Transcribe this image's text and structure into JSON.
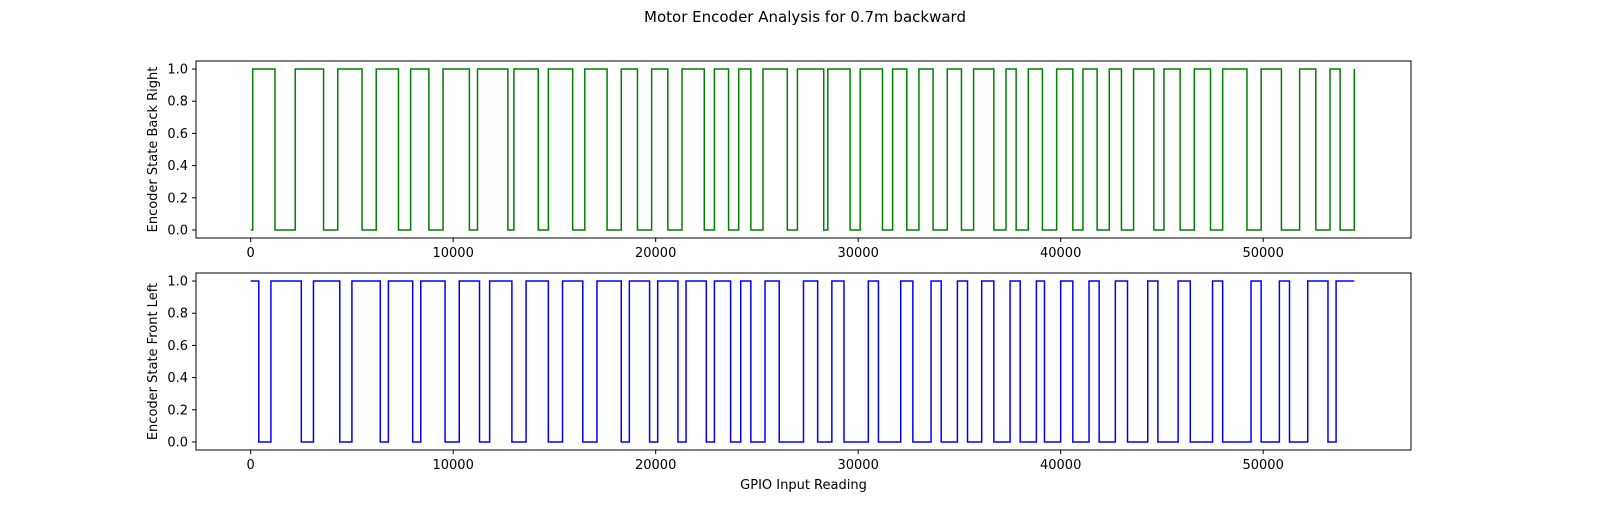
{
  "title": "Motor Encoder Analysis for 0.7m backward",
  "chart_data": [
    {
      "type": "line",
      "step": "post",
      "title": "",
      "xlabel": "",
      "ylabel": "Encoder State Back Right",
      "color": "#008000",
      "xlim": [
        -2700,
        57300
      ],
      "ylim": [
        -0.05,
        1.05
      ],
      "xticks": [
        0,
        10000,
        20000,
        30000,
        40000,
        50000
      ],
      "yticks": [
        0.0,
        0.2,
        0.4,
        0.6,
        0.8,
        1.0
      ],
      "xtick_labels": [
        "0",
        "10000",
        "20000",
        "30000",
        "40000",
        "50000"
      ],
      "ytick_labels": [
        "0.0",
        "0.2",
        "0.4",
        "0.6",
        "0.8",
        "1.0"
      ],
      "initial_state": 0,
      "end_x": 54500,
      "transitions": [
        100,
        1200,
        2200,
        3600,
        4300,
        5500,
        6200,
        7300,
        7900,
        8800,
        9500,
        10800,
        11200,
        12700,
        13000,
        14200,
        14700,
        15900,
        16500,
        17600,
        18300,
        19100,
        19800,
        20600,
        21300,
        22400,
        22900,
        23600,
        24100,
        24700,
        25300,
        26500,
        27000,
        28300,
        28500,
        29600,
        30100,
        31200,
        31700,
        32400,
        33000,
        33700,
        34400,
        35100,
        35700,
        36700,
        37300,
        37800,
        38400,
        39100,
        39800,
        40600,
        41100,
        41800,
        42400,
        43000,
        43600,
        44600,
        45100,
        45900,
        46600,
        47400,
        48000,
        49200,
        49900,
        50900,
        51800,
        52600,
        53300,
        53800,
        54500
      ],
      "grid": false,
      "legend": "none"
    },
    {
      "type": "line",
      "step": "post",
      "title": "",
      "xlabel": "GPIO Input Reading",
      "ylabel": "Encoder State Front Left",
      "color": "#0000ff",
      "xlim": [
        -2700,
        57300
      ],
      "ylim": [
        -0.05,
        1.05
      ],
      "xticks": [
        0,
        10000,
        20000,
        30000,
        40000,
        50000
      ],
      "yticks": [
        0.0,
        0.2,
        0.4,
        0.6,
        0.8,
        1.0
      ],
      "xtick_labels": [
        "0",
        "10000",
        "20000",
        "30000",
        "40000",
        "50000"
      ],
      "ytick_labels": [
        "0.0",
        "0.2",
        "0.4",
        "0.6",
        "0.8",
        "1.0"
      ],
      "initial_state": 1,
      "end_x": 54500,
      "transitions": [
        400,
        1000,
        2500,
        3100,
        4400,
        5000,
        6400,
        6800,
        8000,
        8400,
        9600,
        10300,
        11300,
        11800,
        12900,
        13600,
        14700,
        15400,
        16400,
        17100,
        18300,
        18700,
        19700,
        20100,
        21100,
        21500,
        22500,
        22900,
        23700,
        24200,
        24700,
        25400,
        26100,
        27300,
        28000,
        28700,
        29300,
        30500,
        31000,
        32100,
        32700,
        33600,
        34100,
        34900,
        35400,
        36100,
        36700,
        37500,
        38000,
        38800,
        39200,
        40000,
        40600,
        41400,
        41900,
        42700,
        43300,
        44300,
        44800,
        45800,
        46400,
        47500,
        48000,
        49400,
        49900,
        50800,
        51300,
        52200,
        53200,
        53600
      ]
    }
  ]
}
